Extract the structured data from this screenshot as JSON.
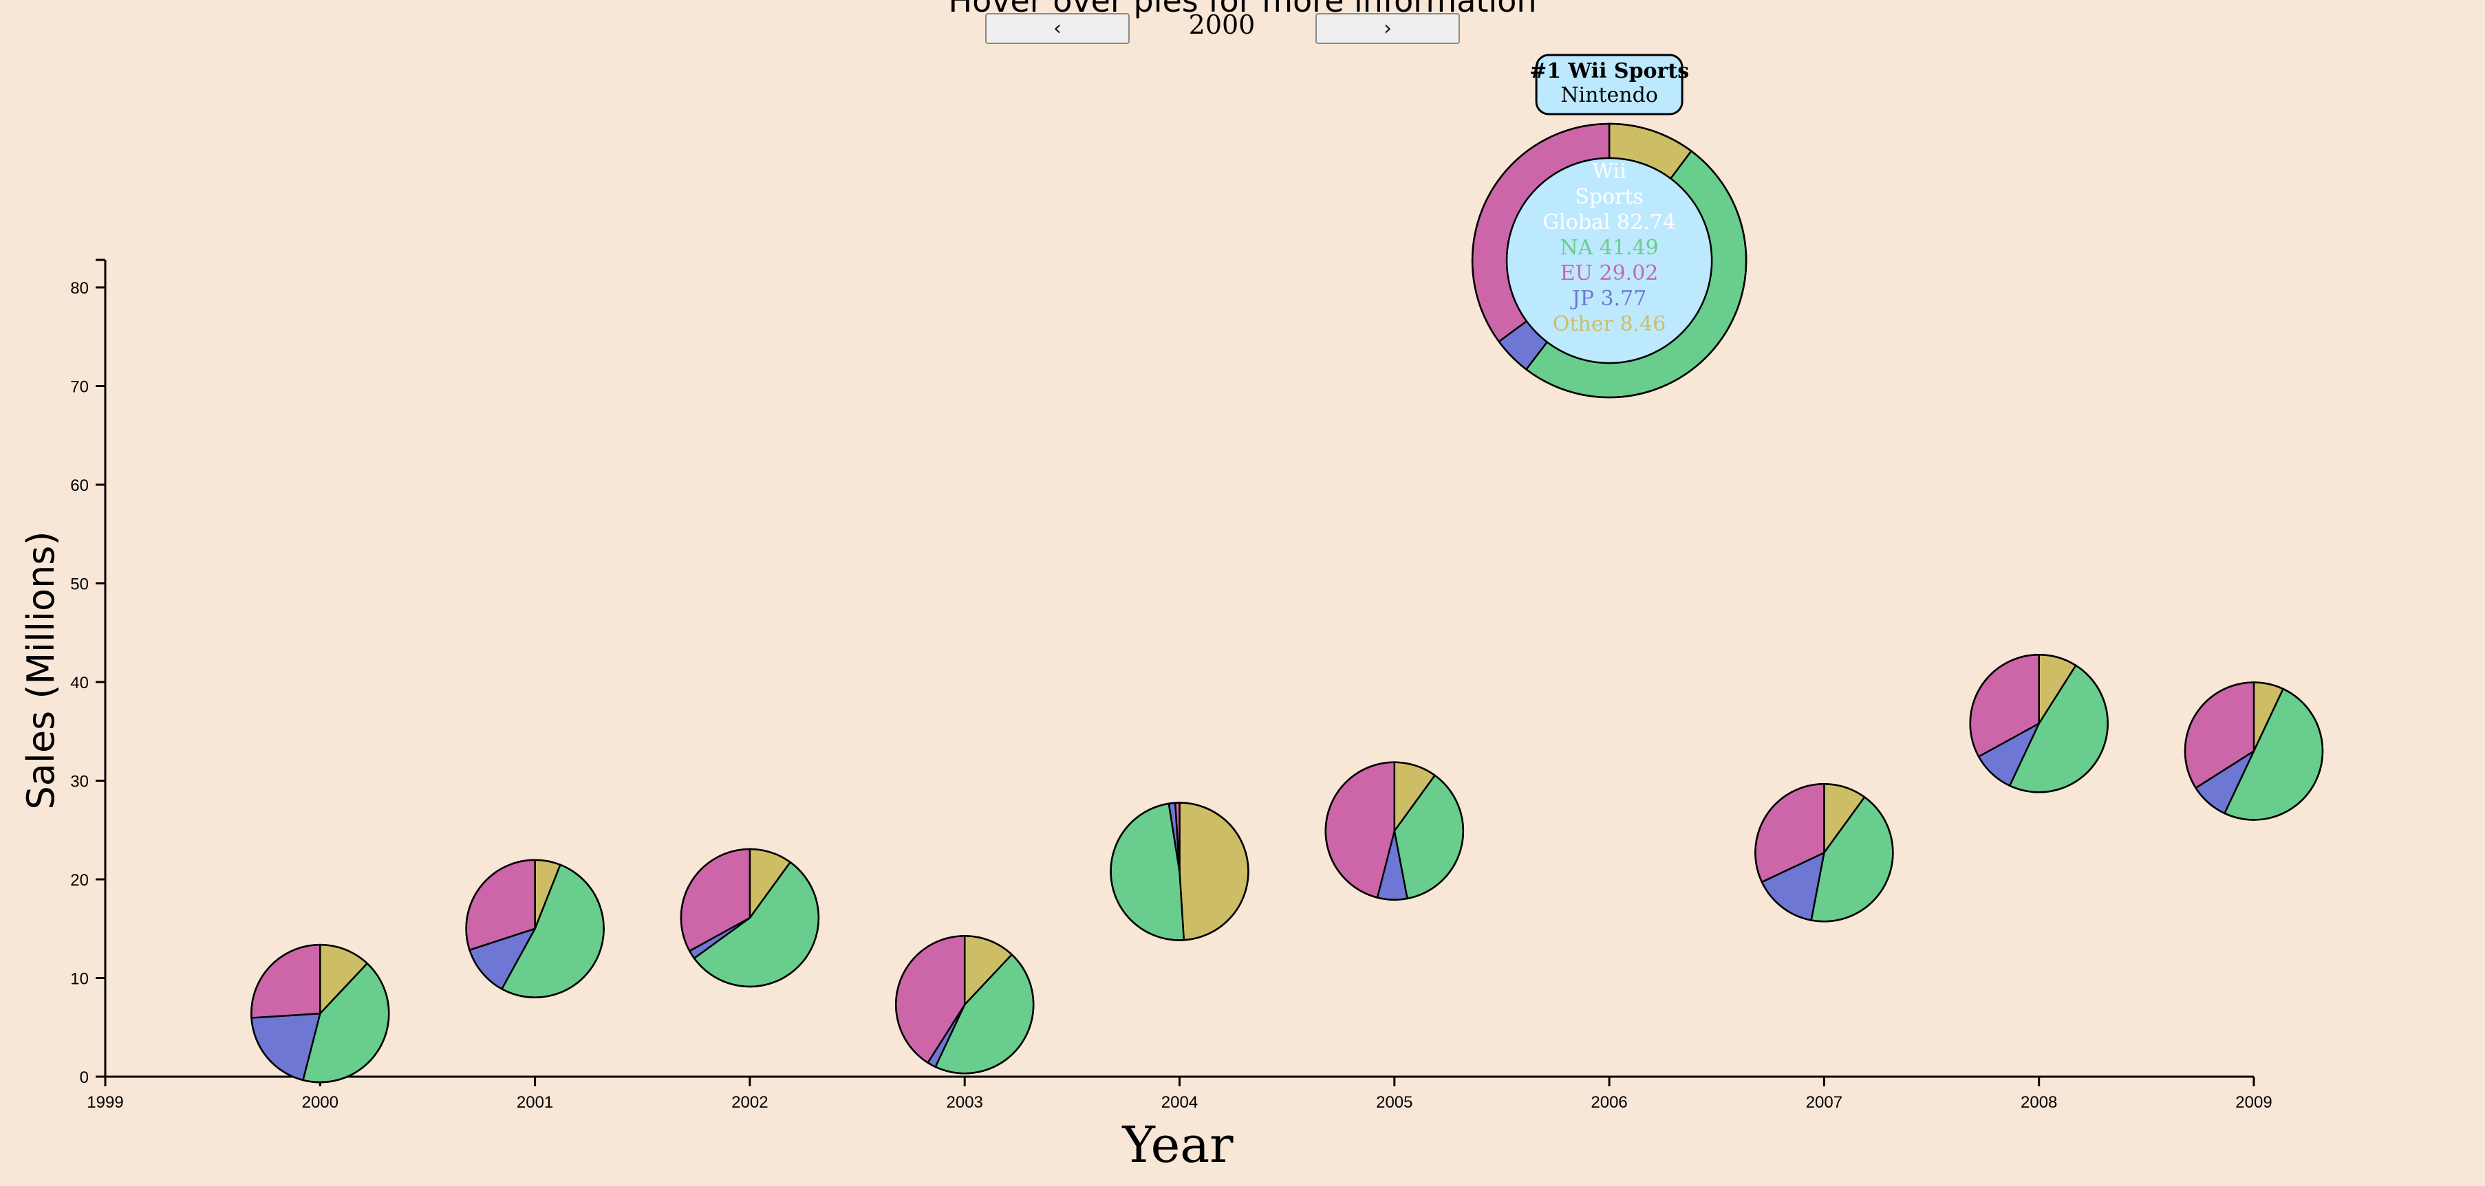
{
  "header": {
    "hint": "Hover over pies for more information",
    "prev_label": "‹",
    "next_label": "›",
    "current_year": "2000"
  },
  "chart_data": {
    "type": "pie",
    "xlabel": "Year",
    "ylabel": "Sales (Millions)",
    "xlim": [
      1999,
      2009
    ],
    "ylim": [
      0,
      80
    ],
    "x_ticks": [
      "1999",
      "2000",
      "2001",
      "2002",
      "2003",
      "2004",
      "2005",
      "2006",
      "2007",
      "2008",
      "2009"
    ],
    "y_ticks": [
      "0",
      "10",
      "20",
      "30",
      "40",
      "50",
      "60",
      "70",
      "80"
    ],
    "colors": {
      "NA": "#68cd8d",
      "EU": "#cc66a8",
      "JP": "#6f77d4",
      "Other": "#cdbe66"
    },
    "highlight": {
      "year": 2006,
      "rank_title": "#1 Wii Sports",
      "publisher": "Nintendo",
      "name": "Wii Sports",
      "lines": [
        {
          "text": "Global 82.74",
          "region": "Global"
        },
        {
          "text": "NA 41.49",
          "region": "NA"
        },
        {
          "text": "EU 29.02",
          "region": "EU"
        },
        {
          "text": "JP 3.77",
          "region": "JP"
        },
        {
          "text": "Other 8.46",
          "region": "Other"
        }
      ],
      "global": 82.74,
      "na": 41.49,
      "eu": 29.02,
      "jp": 3.77,
      "other": 8.46,
      "tooltip_bg": "#bde9ff"
    },
    "points": [
      {
        "year": 2000,
        "global": 6.4,
        "other": 0.12,
        "na": 0.42,
        "jp": 0.2,
        "eu": 0.26
      },
      {
        "year": 2001,
        "global": 15.0,
        "other": 0.06,
        "na": 0.52,
        "jp": 0.12,
        "eu": 0.3
      },
      {
        "year": 2002,
        "global": 16.1,
        "other": 0.1,
        "na": 0.55,
        "jp": 0.02,
        "eu": 0.33
      },
      {
        "year": 2003,
        "global": 7.3,
        "other": 0.12,
        "na": 0.45,
        "jp": 0.02,
        "eu": 0.41
      },
      {
        "year": 2004,
        "global": 20.8,
        "other": 0.49,
        "na": 0.485,
        "jp": 0.015,
        "eu": 0.01
      },
      {
        "year": 2005,
        "global": 24.9,
        "other": 0.1,
        "na": 0.37,
        "jp": 0.07,
        "eu": 0.46
      },
      {
        "year": 2007,
        "global": 22.7,
        "other": 0.1,
        "na": 0.43,
        "jp": 0.15,
        "eu": 0.32
      },
      {
        "year": 2008,
        "global": 35.8,
        "other": 0.09,
        "na": 0.48,
        "jp": 0.1,
        "eu": 0.33
      },
      {
        "year": 2009,
        "global": 33.0,
        "other": 0.07,
        "na": 0.5,
        "jp": 0.09,
        "eu": 0.34
      }
    ]
  }
}
